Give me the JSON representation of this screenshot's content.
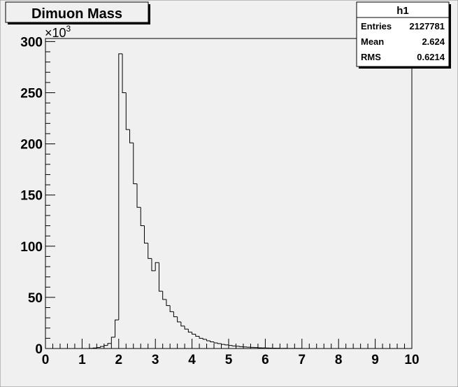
{
  "chart_data": {
    "type": "histogram",
    "title": "Dimuon Mass",
    "y_multiplier": {
      "base": "×10",
      "exponent": "3"
    },
    "bins": [
      0,
      0.1,
      0.2,
      0.3,
      0.4,
      0.5,
      0.6,
      0.7,
      0.8,
      0.9,
      1,
      1.1,
      1.2,
      1.3,
      1.4,
      1.5,
      1.6,
      1.7,
      1.8,
      1.9,
      2,
      2.1,
      2.2,
      2.3,
      2.4,
      2.5,
      2.6,
      2.7,
      2.8,
      2.9,
      3,
      3.1,
      3.2,
      3.3,
      3.4,
      3.5,
      3.6,
      3.7,
      3.8,
      3.9,
      4,
      4.1,
      4.2,
      4.3,
      4.4,
      4.5,
      4.6,
      4.7,
      4.8,
      4.9,
      5,
      5.1,
      5.2,
      5.3,
      5.4,
      5.5,
      5.6,
      5.7,
      5.8,
      5.9,
      6,
      6.1,
      6.2,
      6.3,
      6.4,
      6.5,
      6.6,
      6.7,
      6.8,
      6.9,
      7,
      7.1,
      7.2,
      7.3,
      7.4,
      7.5,
      7.6,
      7.7,
      7.8,
      7.9,
      8,
      8.1,
      8.2,
      8.3,
      8.4,
      8.5,
      8.6,
      8.7,
      8.8,
      8.9,
      9,
      9.1,
      9.2,
      9.3,
      9.4,
      9.5,
      9.6,
      9.7,
      9.8,
      9.9,
      10
    ],
    "values": [
      0,
      0,
      0,
      0,
      0,
      0,
      0,
      0,
      0,
      0,
      0,
      0,
      0.2,
      0.5,
      1,
      2,
      3,
      5,
      11,
      28,
      288,
      250,
      214,
      201,
      161,
      138,
      120,
      103,
      88,
      76,
      84,
      56,
      48,
      42,
      36,
      31,
      26,
      22,
      19,
      16,
      14,
      12,
      10,
      9,
      7.5,
      6.5,
      5.5,
      4.8,
      4,
      3.5,
      3,
      2.5,
      2.2,
      1.8,
      1.5,
      1.3,
      1.1,
      0.9,
      0.7,
      0.6,
      0.5,
      0.4,
      0.3,
      0.3,
      0.2,
      0.2,
      0.1,
      0.1,
      0.1,
      0.1,
      0,
      0,
      0,
      0,
      0,
      0,
      0,
      0,
      0,
      0,
      0,
      0,
      0,
      0,
      0,
      0,
      0,
      0,
      0,
      0,
      0,
      0,
      0,
      0,
      0,
      0,
      0,
      0,
      0,
      0
    ],
    "color": "#000000",
    "xlim": [
      0,
      10
    ],
    "xticks": [
      0,
      1,
      2,
      3,
      4,
      5,
      6,
      7,
      8,
      9,
      10
    ],
    "xminorticks": [
      0.2,
      0.4,
      0.6,
      0.8,
      1.2,
      1.4,
      1.6,
      1.8,
      2.2,
      2.4,
      2.6,
      2.8,
      3.2,
      3.4,
      3.6,
      3.8,
      4.2,
      4.4,
      4.6,
      4.8,
      5.2,
      5.4,
      5.6,
      5.8,
      6.2,
      6.4,
      6.6,
      6.8,
      7.2,
      7.4,
      7.6,
      7.8,
      8.2,
      8.4,
      8.6,
      8.8,
      9.2,
      9.4,
      9.6,
      9.8
    ],
    "ylim": [
      0,
      303
    ],
    "yticks": [
      0,
      50,
      100,
      150,
      200,
      250,
      300
    ],
    "yminorticks": [
      10,
      20,
      30,
      40,
      60,
      70,
      80,
      90,
      110,
      120,
      130,
      140,
      160,
      170,
      180,
      190,
      210,
      220,
      230,
      240,
      260,
      270,
      280,
      290
    ],
    "stats": {
      "title": "h1",
      "rows": [
        [
          "Entries",
          "2127781"
        ],
        [
          "Mean",
          "2.624"
        ],
        [
          "RMS",
          "0.6214"
        ]
      ]
    }
  }
}
